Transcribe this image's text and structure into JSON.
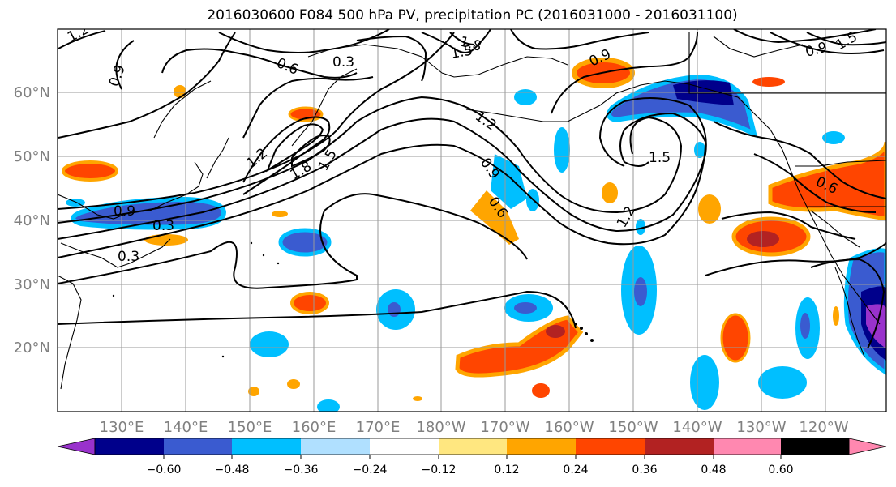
{
  "title": "2016030600 F084 500 hPa PV, precipitation PC (2016031000 - 2016031100)",
  "map": {
    "lon_labels": [
      "130°E",
      "140°E",
      "150°E",
      "160°E",
      "170°E",
      "180°W",
      "170°W",
      "160°W",
      "150°W",
      "140°W",
      "130°W",
      "120°W"
    ],
    "lat_labels": [
      "60°N",
      "50°N",
      "40°N",
      "30°N",
      "20°N"
    ],
    "contour_labels": [
      "1.2",
      "0.9",
      "0.6",
      "0.3",
      "1.8",
      "1.5",
      "1.2",
      "1.8",
      "1.5",
      "0.9",
      "0.3",
      "0.3",
      "1.2",
      "0.9",
      "0.6",
      "0.9",
      "1.5",
      "1.2",
      "0.6",
      "1.5",
      "0.9"
    ],
    "shading_colors": {
      "lt_-0.60": "#9932cc",
      "-0.60_-0.48": "#00008b",
      "-0.48_-0.36": "#3a5bd0",
      "-0.36_-0.24": "#00bfff",
      "-0.24_-0.12": "#b0e0ff",
      "-0.12_0.12": "#ffffff",
      "0.12_0.24": "#ffe780",
      "0.24_0.36": "#ffa500",
      "0.36_0.48": "#ff4500",
      "0.48_0.60": "#b22222",
      "gt_0.60": "#ff88b0"
    }
  },
  "colorbar": {
    "ticks": [
      "−0.60",
      "−0.48",
      "−0.36",
      "−0.24",
      "−0.12",
      "0.12",
      "0.24",
      "0.36",
      "0.48",
      "0.60"
    ],
    "colors": [
      "#9932cc",
      "#00008b",
      "#3a5bd0",
      "#00bfff",
      "#b0e0ff",
      "#ffffff",
      "#ffe780",
      "#ffa500",
      "#ff4500",
      "#b22222",
      "#ff88b0"
    ]
  }
}
